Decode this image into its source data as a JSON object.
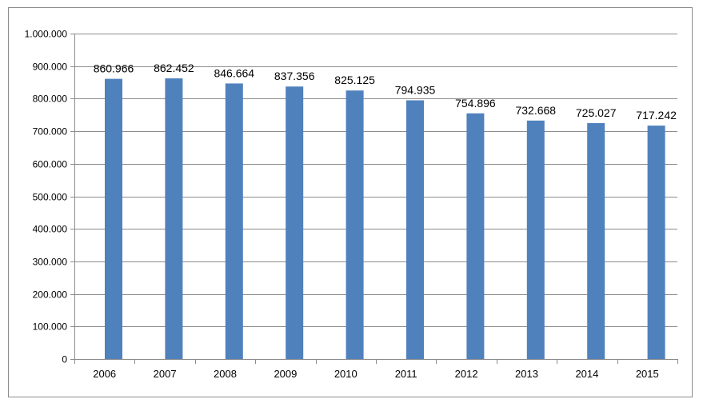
{
  "chart_data": {
    "type": "bar",
    "categories": [
      "2006",
      "2007",
      "2008",
      "2009",
      "2010",
      "2011",
      "2012",
      "2013",
      "2014",
      "2015"
    ],
    "values": [
      860966,
      862452,
      846664,
      837356,
      825125,
      794935,
      754896,
      732668,
      725027,
      717242
    ],
    "data_labels": [
      "860.966",
      "862.452",
      "846.664",
      "837.356",
      "825.125",
      "794.935",
      "754.896",
      "732.668",
      "725.027",
      "717.242"
    ],
    "y_ticks": [
      0,
      100000,
      200000,
      300000,
      400000,
      500000,
      600000,
      700000,
      800000,
      900000,
      1000000
    ],
    "y_tick_labels": [
      "0",
      "100.000",
      "200.000",
      "300.000",
      "400.000",
      "500.000",
      "600.000",
      "700.000",
      "800.000",
      "900.000",
      "1.000.000"
    ],
    "ylim": [
      0,
      1000000
    ],
    "grid": true,
    "legend": "none",
    "colors": {
      "bar": "#4f81bd",
      "grid": "#8c8c8c",
      "axis": "#8c8c8c"
    }
  }
}
